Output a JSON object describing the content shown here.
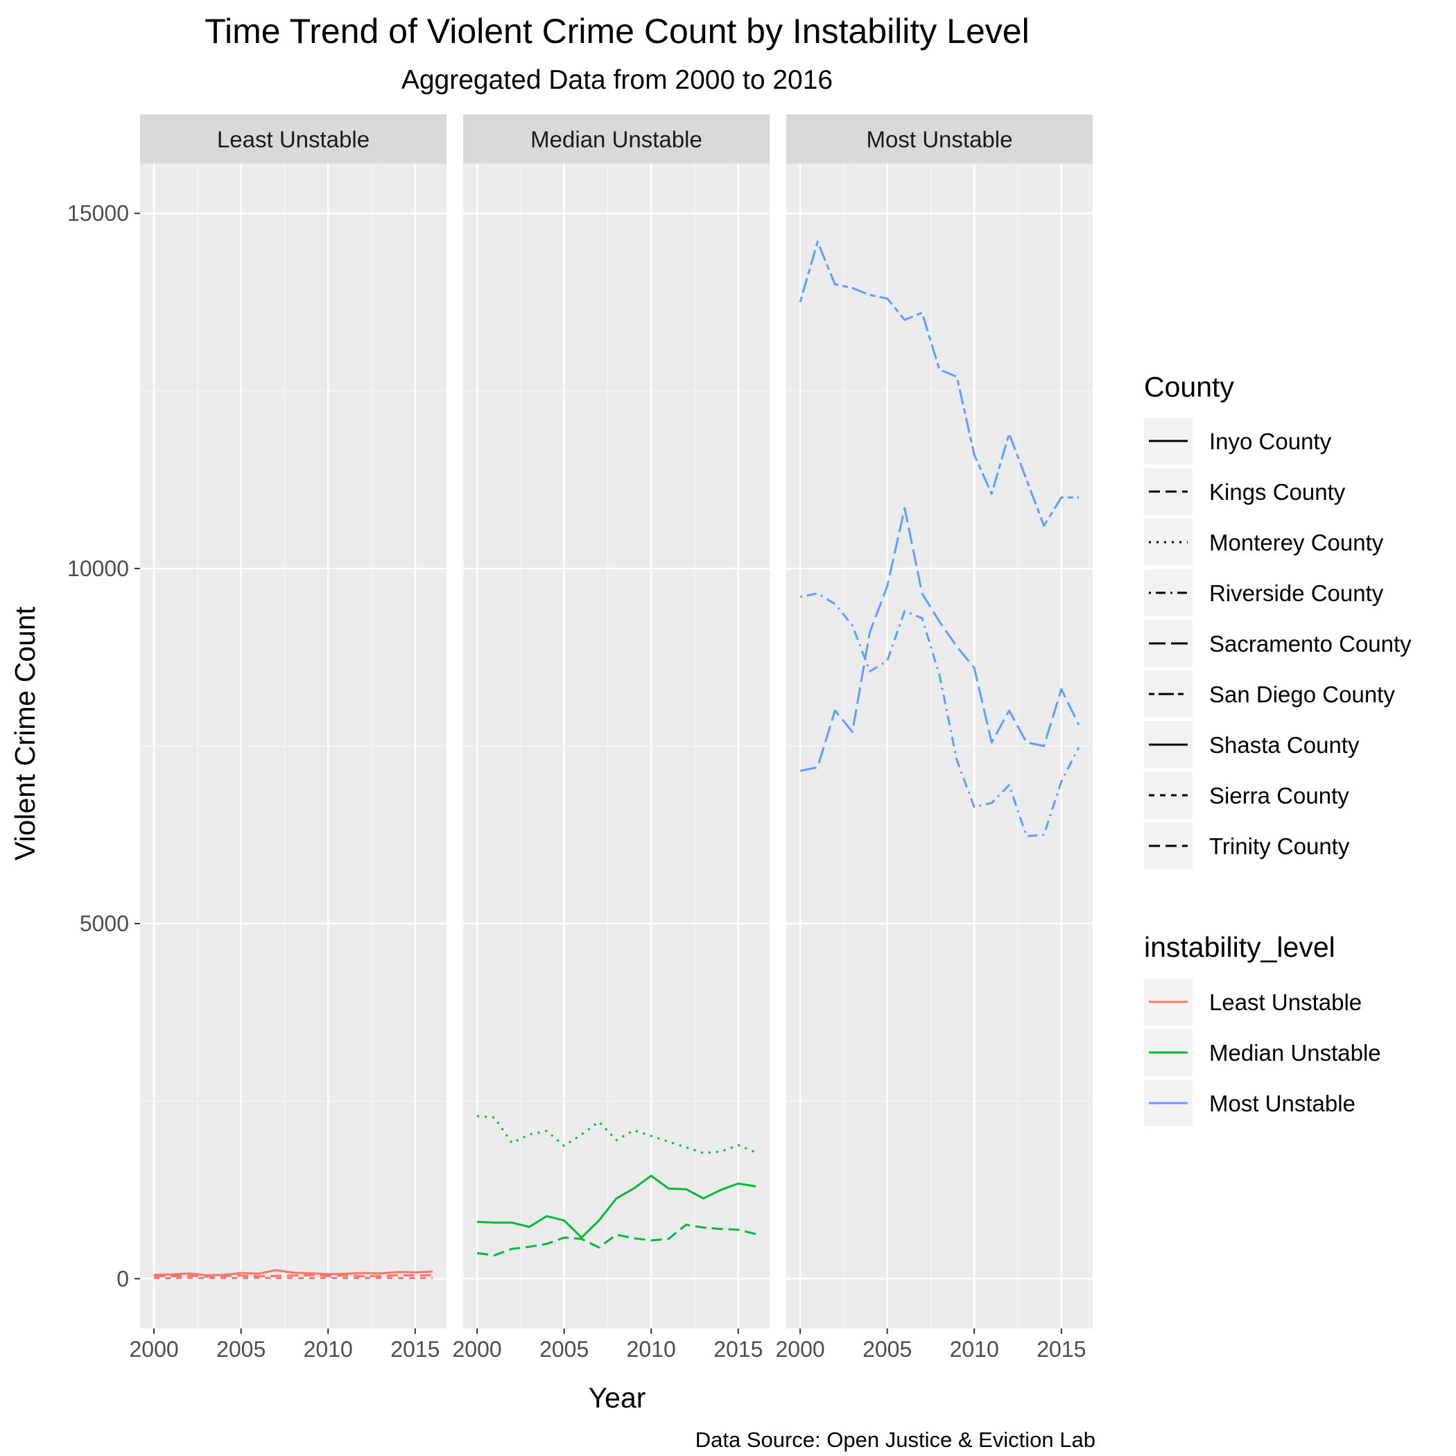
{
  "chart_data": {
    "type": "line",
    "title": "Time Trend of Violent Crime Count by Instability Level",
    "subtitle": "Aggregated Data from 2000 to 2016",
    "xlabel": "Year",
    "ylabel": "Violent Crime Count",
    "caption": "Data Source: Open Justice & Eviction Lab",
    "xlim": [
      1999.2,
      2016.8
    ],
    "ylim": [
      -700,
      15700
    ],
    "x_ticks": [
      2000,
      2005,
      2010,
      2015
    ],
    "y_ticks": [
      0,
      5000,
      10000,
      15000
    ],
    "grid": true,
    "legend_position": "right",
    "facets": [
      {
        "label": "Least Unstable",
        "color": "#F8766D",
        "series": [
          {
            "county": "Inyo County",
            "x": [
              2000,
              2001,
              2002,
              2003,
              2004,
              2005,
              2006,
              2007,
              2008,
              2009,
              2010,
              2011,
              2012,
              2013,
              2014,
              2015,
              2016
            ],
            "values": [
              55,
              60,
              75,
              50,
              55,
              80,
              70,
              120,
              85,
              75,
              65,
              70,
              80,
              75,
              95,
              90,
              100
            ]
          },
          {
            "county": "Sierra County",
            "x": [
              2000,
              2001,
              2002,
              2003,
              2004,
              2005,
              2006,
              2007,
              2008,
              2009,
              2010,
              2011,
              2012,
              2013,
              2014,
              2015,
              2016
            ],
            "values": [
              10,
              8,
              12,
              9,
              11,
              10,
              12,
              9,
              10,
              8,
              11,
              10,
              9,
              12,
              10,
              9,
              11
            ]
          },
          {
            "county": "Trinity County",
            "x": [
              2000,
              2001,
              2002,
              2003,
              2004,
              2005,
              2006,
              2007,
              2008,
              2009,
              2010,
              2011,
              2012,
              2013,
              2014,
              2015,
              2016
            ],
            "values": [
              40,
              35,
              45,
              30,
              40,
              45,
              35,
              40,
              45,
              50,
              40,
              45,
              35,
              40,
              50,
              45,
              50
            ]
          }
        ]
      },
      {
        "label": "Median Unstable",
        "color": "#00BA38",
        "series": [
          {
            "county": "Kings County",
            "x": [
              2000,
              2001,
              2002,
              2003,
              2004,
              2005,
              2006,
              2007,
              2008,
              2009,
              2010,
              2011,
              2012,
              2013,
              2014,
              2015,
              2016
            ],
            "values": [
              360,
              330,
              420,
              450,
              490,
              580,
              560,
              440,
              620,
              570,
              540,
              560,
              760,
              720,
              700,
              690,
              630
            ]
          },
          {
            "county": "Monterey County",
            "x": [
              2000,
              2001,
              2002,
              2003,
              2004,
              2005,
              2006,
              2007,
              2008,
              2009,
              2010,
              2011,
              2012,
              2013,
              2014,
              2015,
              2016
            ],
            "values": [
              2290,
              2270,
              1910,
              2030,
              2080,
              1870,
              2030,
              2210,
              1950,
              2090,
              2010,
              1930,
              1850,
              1770,
              1790,
              1880,
              1780
            ]
          },
          {
            "county": "Shasta County",
            "x": [
              2000,
              2001,
              2002,
              2003,
              2004,
              2005,
              2006,
              2007,
              2008,
              2009,
              2010,
              2011,
              2012,
              2013,
              2014,
              2015,
              2016
            ],
            "values": [
              800,
              790,
              790,
              730,
              880,
              820,
              580,
              820,
              1130,
              1270,
              1450,
              1270,
              1260,
              1130,
              1250,
              1340,
              1300
            ]
          }
        ]
      },
      {
        "label": "Most Unstable",
        "color": "#619CFF",
        "series": [
          {
            "county": "Riverside County",
            "x": [
              2000,
              2001,
              2002,
              2003,
              2004,
              2005,
              2006,
              2007,
              2008,
              2009,
              2010,
              2011,
              2012,
              2013,
              2014,
              2015,
              2016
            ],
            "values": [
              9600,
              9650,
              9500,
              9200,
              8550,
              8700,
              9400,
              9300,
              8500,
              7300,
              6640,
              6700,
              6950,
              6230,
              6250,
              7000,
              7480
            ]
          },
          {
            "county": "Sacramento County",
            "x": [
              2000,
              2001,
              2002,
              2003,
              2004,
              2005,
              2006,
              2007,
              2008,
              2009,
              2010,
              2011,
              2012,
              2013,
              2014,
              2015,
              2016
            ],
            "values": [
              7150,
              7200,
              8000,
              7700,
              9100,
              9750,
              10850,
              9650,
              9250,
              8900,
              8600,
              7550,
              8000,
              7550,
              7500,
              8300,
              7800
            ]
          },
          {
            "county": "San Diego County",
            "x": [
              2000,
              2001,
              2002,
              2003,
              2004,
              2005,
              2006,
              2007,
              2008,
              2009,
              2010,
              2011,
              2012,
              2013,
              2014,
              2015,
              2016
            ],
            "values": [
              13750,
              14600,
              14000,
              13950,
              13850,
              13800,
              13500,
              13600,
              12800,
              12700,
              11600,
              11050,
              11900,
              11250,
              10600,
              11000,
              11000
            ]
          }
        ]
      }
    ],
    "legends": [
      {
        "title": "County",
        "entries": [
          {
            "label": "Inyo County",
            "linetype": "solid"
          },
          {
            "label": "Kings County",
            "linetype": "dashed"
          },
          {
            "label": "Monterey County",
            "linetype": "dotted"
          },
          {
            "label": "Riverside County",
            "linetype": "dotdash"
          },
          {
            "label": "Sacramento County",
            "linetype": "longdash"
          },
          {
            "label": "San Diego County",
            "linetype": "twodash"
          },
          {
            "label": "Shasta County",
            "linetype": "solid"
          },
          {
            "label": "Sierra County",
            "linetype": "22"
          },
          {
            "label": "Trinity County",
            "linetype": "42"
          }
        ]
      },
      {
        "title": "instability_level",
        "entries": [
          {
            "label": "Least Unstable",
            "color": "#F8766D"
          },
          {
            "label": "Median Unstable",
            "color": "#00BA38"
          },
          {
            "label": "Most Unstable",
            "color": "#619CFF"
          }
        ]
      }
    ]
  }
}
